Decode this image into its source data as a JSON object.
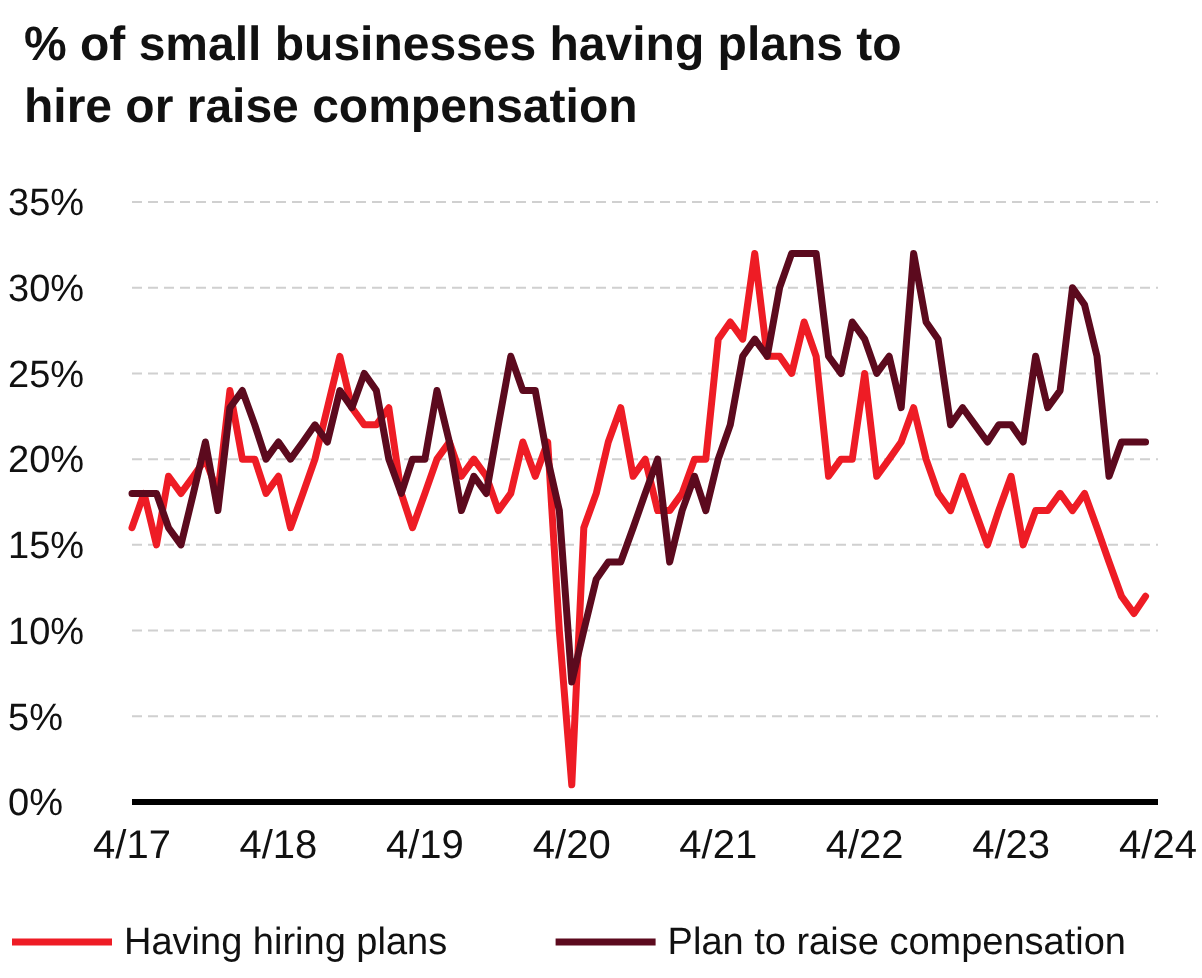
{
  "chart_data": {
    "type": "line",
    "title": "% of small businesses having plans to hire or raise compensation",
    "x": [
      "2017-04",
      "2017-05",
      "2017-06",
      "2017-07",
      "2017-08",
      "2017-09",
      "2017-10",
      "2017-11",
      "2017-12",
      "2018-01",
      "2018-02",
      "2018-03",
      "2018-04",
      "2018-05",
      "2018-06",
      "2018-07",
      "2018-08",
      "2018-09",
      "2018-10",
      "2018-11",
      "2018-12",
      "2019-01",
      "2019-02",
      "2019-03",
      "2019-04",
      "2019-05",
      "2019-06",
      "2019-07",
      "2019-08",
      "2019-09",
      "2019-10",
      "2019-11",
      "2019-12",
      "2020-01",
      "2020-02",
      "2020-03",
      "2020-04",
      "2020-05",
      "2020-06",
      "2020-07",
      "2020-08",
      "2020-09",
      "2020-10",
      "2020-11",
      "2020-12",
      "2021-01",
      "2021-02",
      "2021-03",
      "2021-04",
      "2021-05",
      "2021-06",
      "2021-07",
      "2021-08",
      "2021-09",
      "2021-10",
      "2021-11",
      "2021-12",
      "2022-01",
      "2022-02",
      "2022-03",
      "2022-04",
      "2022-05",
      "2022-06",
      "2022-07",
      "2022-08",
      "2022-09",
      "2022-10",
      "2022-11",
      "2022-12",
      "2023-01",
      "2023-02",
      "2023-03",
      "2023-04",
      "2023-05",
      "2023-06",
      "2023-07",
      "2023-08",
      "2023-09",
      "2023-10",
      "2023-11",
      "2023-12",
      "2024-01",
      "2024-02",
      "2024-03"
    ],
    "series": [
      {
        "name": "Having hiring plans",
        "color": "#ee1c25",
        "values": [
          16,
          18,
          15,
          19,
          18,
          19,
          20,
          18,
          24,
          20,
          20,
          18,
          19,
          16,
          18,
          20,
          23,
          26,
          23,
          22,
          22,
          23,
          18,
          16,
          18,
          20,
          21,
          19,
          20,
          19,
          17,
          18,
          21,
          19,
          21,
          10,
          1,
          16,
          18,
          21,
          23,
          19,
          20,
          17,
          17,
          18,
          20,
          20,
          27,
          28,
          27,
          32,
          26,
          26,
          25,
          28,
          26,
          19,
          20,
          20,
          25,
          19,
          20,
          21,
          23,
          20,
          18,
          17,
          19,
          17,
          15,
          17,
          19,
          15,
          17,
          17,
          18,
          17,
          18,
          16,
          14,
          12,
          11,
          12
        ]
      },
      {
        "name": "Plan to raise compensation",
        "color": "#5c0a1e",
        "values": [
          18,
          18,
          18,
          16,
          15,
          18,
          21,
          17,
          23,
          24,
          22,
          20,
          21,
          20,
          21,
          22,
          21,
          24,
          23,
          25,
          24,
          20,
          18,
          20,
          20,
          24,
          21,
          17,
          19,
          18,
          22,
          26,
          24,
          24,
          20,
          17,
          7,
          10,
          13,
          14,
          14,
          16,
          18,
          20,
          14,
          17,
          19,
          17,
          20,
          22,
          26,
          27,
          26,
          30,
          32,
          32,
          32,
          26,
          25,
          28,
          27,
          25,
          26,
          23,
          32,
          28,
          27,
          22,
          23,
          22,
          21,
          22,
          22,
          21,
          26,
          23,
          24,
          30,
          29,
          26,
          19,
          21,
          21,
          21
        ]
      }
    ],
    "ylim": [
      0,
      35
    ],
    "yticks": [
      {
        "value": 0,
        "label": "0%"
      },
      {
        "value": 5,
        "label": "5%"
      },
      {
        "value": 10,
        "label": "10%"
      },
      {
        "value": 15,
        "label": "15%"
      },
      {
        "value": 20,
        "label": "20%"
      },
      {
        "value": 25,
        "label": "25%"
      },
      {
        "value": 30,
        "label": "30%"
      },
      {
        "value": 35,
        "label": "35%"
      }
    ],
    "xlim": [
      "2017-04",
      "2024-04"
    ],
    "xticks": [
      {
        "value": "2017-04",
        "label": "4/17"
      },
      {
        "value": "2018-04",
        "label": "4/18"
      },
      {
        "value": "2019-04",
        "label": "4/19"
      },
      {
        "value": "2020-04",
        "label": "4/20"
      },
      {
        "value": "2021-04",
        "label": "4/21"
      },
      {
        "value": "2022-04",
        "label": "4/22"
      },
      {
        "value": "2023-04",
        "label": "4/23"
      },
      {
        "value": "2024-04",
        "label": "4/24"
      }
    ],
    "grid": "y",
    "legend": "bottom",
    "line_style": "solid",
    "marker": "none"
  }
}
